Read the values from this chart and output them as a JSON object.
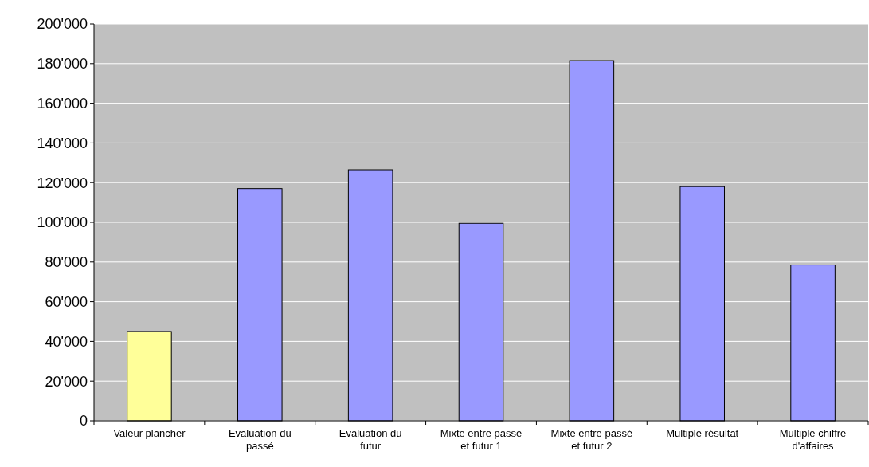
{
  "chart_data": {
    "type": "bar",
    "categories": [
      "Valeur plancher",
      "Evaluation du passé",
      "Evaluation du futur",
      "Mixte entre passé et futur 1",
      "Mixte entre passé et futur 2",
      "Multiple résultat",
      "Multiple chiffre d'affaires"
    ],
    "values": [
      45000,
      117000,
      126500,
      99500,
      181500,
      118000,
      78500
    ],
    "colors": [
      "#ffff99",
      "#9999ff",
      "#9999ff",
      "#9999ff",
      "#9999ff",
      "#9999ff",
      "#9999ff"
    ],
    "ylim": [
      0,
      200000
    ],
    "yticks": [
      {
        "value": 0,
        "label": "0"
      },
      {
        "value": 20000,
        "label": "20'000"
      },
      {
        "value": 40000,
        "label": "40'000"
      },
      {
        "value": 60000,
        "label": "60'000"
      },
      {
        "value": 80000,
        "label": "80'000"
      },
      {
        "value": 100000,
        "label": "100'000"
      },
      {
        "value": 120000,
        "label": "120'000"
      },
      {
        "value": 140000,
        "label": "140'000"
      },
      {
        "value": 160000,
        "label": "160'000"
      },
      {
        "value": 180000,
        "label": "180'000"
      },
      {
        "value": 200000,
        "label": "200'000"
      }
    ],
    "grid": "y"
  }
}
